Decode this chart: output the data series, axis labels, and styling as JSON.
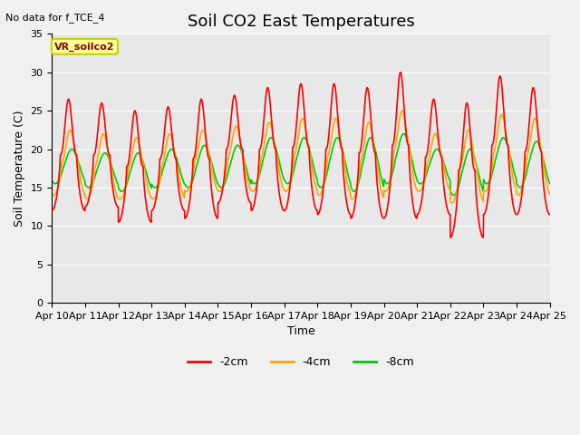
{
  "title": "Soil CO2 East Temperatures",
  "no_data_text": "No data for f_TCE_4",
  "ylabel": "Soil Temperature (C)",
  "xlabel": "Time",
  "ylim": [
    0,
    35
  ],
  "yticks": [
    0,
    5,
    10,
    15,
    20,
    25,
    30,
    35
  ],
  "xtick_labels": [
    "Apr 10",
    "Apr 11",
    "Apr 12",
    "Apr 13",
    "Apr 14",
    "Apr 15",
    "Apr 16",
    "Apr 17",
    "Apr 18",
    "Apr 19",
    "Apr 20",
    "Apr 21",
    "Apr 22",
    "Apr 23",
    "Apr 24",
    "Apr 25"
  ],
  "legend_label": "VR_soilco2",
  "line_colors": [
    "#ff0000",
    "#ffa500",
    "#00cc00"
  ],
  "line_labels": [
    "-2cm",
    "-4cm",
    "-8cm"
  ],
  "background_color": "#e8e8e8",
  "fig_background": "#f0f0f0",
  "grid_color": "#ffffff",
  "title_fontsize": 13,
  "label_fontsize": 9,
  "tick_fontsize": 8,
  "line_width": 1.2
}
